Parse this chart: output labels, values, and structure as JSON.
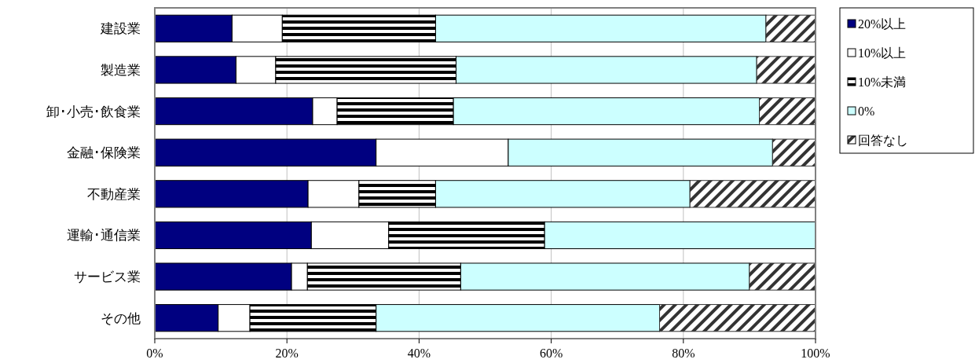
{
  "chart_data": {
    "type": "bar",
    "orientation": "horizontal",
    "stacked": true,
    "categories": [
      "建設業",
      "製造業",
      "卸･小売･飲食業",
      "金融･保険業",
      "不動産業",
      "運輸･通信業",
      "サービス業",
      "その他"
    ],
    "series": [
      {
        "name": "20%以上",
        "color": "#000080",
        "values": [
          11.7,
          12.3,
          23.9,
          33.5,
          23.2,
          23.7,
          20.7,
          9.6
        ]
      },
      {
        "name": "10%以上",
        "color": "#ffffff",
        "values": [
          7.6,
          6.0,
          3.7,
          20.0,
          7.7,
          11.7,
          2.4,
          4.8
        ]
      },
      {
        "name": "10%未満",
        "color": "#000000",
        "values": [
          23.2,
          27.3,
          17.6,
          0,
          11.6,
          23.6,
          23.2,
          19.1
        ]
      },
      {
        "name": "0%",
        "color": "#ccffff",
        "values": [
          50.0,
          45.5,
          46.3,
          40.0,
          38.5,
          41.0,
          43.7,
          42.9
        ]
      },
      {
        "name": "回答なし",
        "color": "#333333",
        "values": [
          7.5,
          8.9,
          8.5,
          6.5,
          19.0,
          0,
          10.0,
          23.6
        ]
      }
    ],
    "xlim": [
      0,
      100
    ],
    "xticks": [
      {
        "value": 0,
        "label": "0%"
      },
      {
        "value": 20,
        "label": "20%"
      },
      {
        "value": 40,
        "label": "40%"
      },
      {
        "value": 60,
        "label": "60%"
      },
      {
        "value": 80,
        "label": "80%"
      },
      {
        "value": 100,
        "label": "100%"
      }
    ],
    "grid": "x",
    "legend": "right"
  }
}
